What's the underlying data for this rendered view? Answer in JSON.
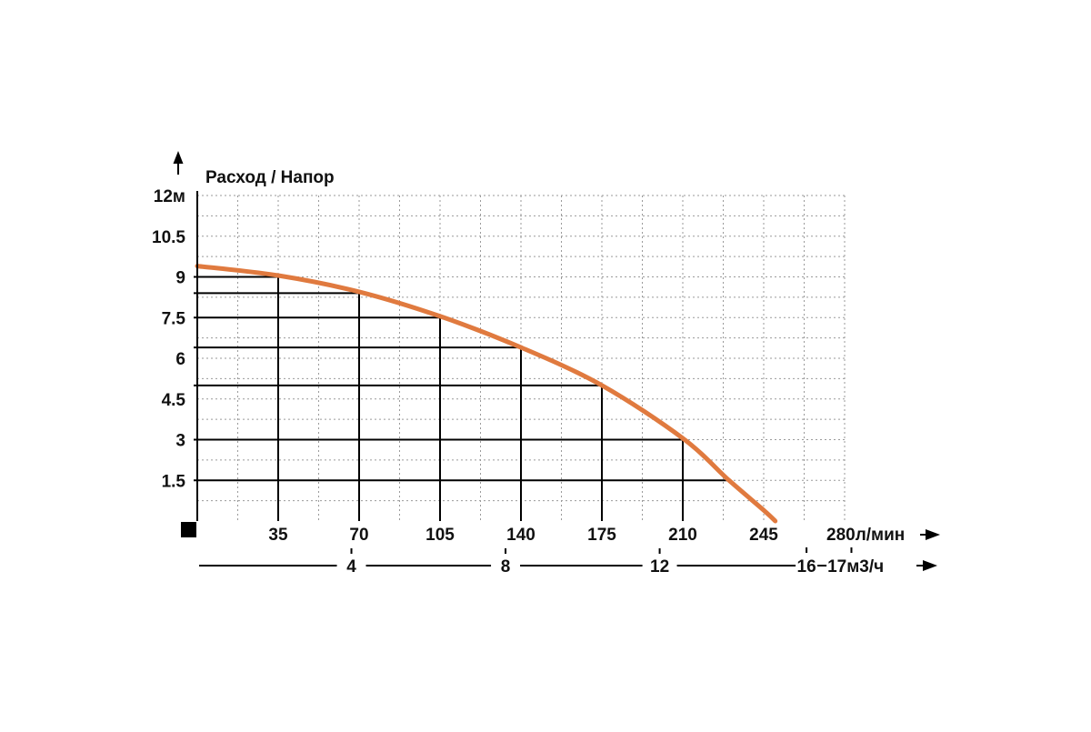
{
  "colors": {
    "curve": "#e07a3f",
    "text": "#111111",
    "grid": "#9a9a9a",
    "axis": "#000000",
    "background": "#ffffff"
  },
  "chart_data": {
    "type": "line",
    "title": "Расход / Напор",
    "xlabel": "",
    "ylabel": "",
    "x_unit": "л/мин",
    "y_unit": "м",
    "secondary_x_unit": "м3/ч",
    "xlim": [
      0,
      280
    ],
    "ylim": [
      0,
      12
    ],
    "x_ticks": [
      "35",
      "70",
      "105",
      "140",
      "175",
      "210",
      "245",
      "280"
    ],
    "y_ticks": [
      "1.5",
      "3",
      "4.5",
      "6",
      "7.5",
      "9",
      "10.5",
      "12"
    ],
    "secondary_x_ticks": [
      "4",
      "8",
      "12",
      "16",
      "17"
    ],
    "grid": true,
    "series": [
      {
        "x": [
          0,
          35,
          70,
          105,
          140,
          175,
          210,
          230,
          245,
          250
        ],
        "y": [
          9.4,
          9.05,
          8.45,
          7.55,
          6.4,
          5.0,
          3.05,
          1.5,
          0.4,
          0.0
        ]
      }
    ],
    "operating_points": [
      {
        "x": 35,
        "y": 9
      },
      {
        "x": 70,
        "y": 8.4
      },
      {
        "x": 105,
        "y": 7.5
      },
      {
        "x": 140,
        "y": 6.4
      },
      {
        "x": 175,
        "y": 5.0
      },
      {
        "x": 210,
        "y": 3.0
      },
      {
        "x": 230,
        "y": 1.5
      }
    ]
  }
}
